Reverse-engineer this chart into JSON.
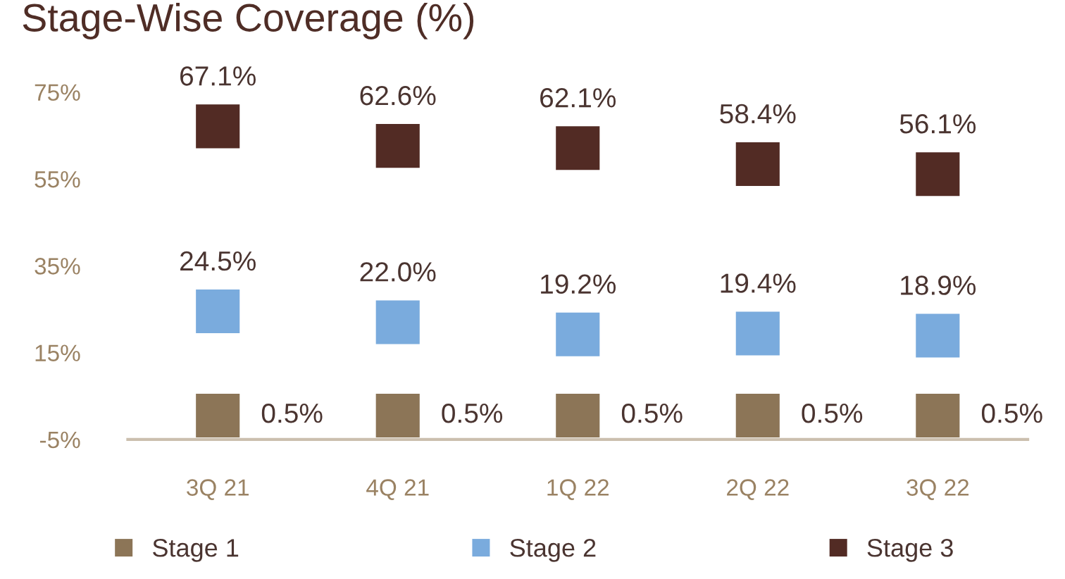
{
  "chart_data": {
    "type": "scatter",
    "title": "Stage-Wise Coverage (%)",
    "categories": [
      "3Q 21",
      "4Q 21",
      "1Q 22",
      "2Q 22",
      "3Q 22"
    ],
    "series": [
      {
        "name": "Stage 1",
        "color": "#8c7557",
        "values": [
          0.5,
          0.5,
          0.5,
          0.5,
          0.5
        ],
        "value_labels": [
          "0.5%",
          "0.5%",
          "0.5%",
          "0.5%",
          "0.5%"
        ]
      },
      {
        "name": "Stage 2",
        "color": "#7aabdd",
        "values": [
          24.5,
          22.0,
          19.2,
          19.4,
          18.9
        ],
        "value_labels": [
          "24.5%",
          "22.0%",
          "19.2%",
          "19.4%",
          "18.9%"
        ]
      },
      {
        "name": "Stage 3",
        "color": "#522b24",
        "values": [
          67.1,
          62.6,
          62.1,
          58.4,
          56.1
        ],
        "value_labels": [
          "67.1%",
          "62.6%",
          "62.1%",
          "58.4%",
          "56.1%"
        ]
      }
    ],
    "ylim": [
      -5,
      75
    ],
    "yticks": [
      {
        "value": -5,
        "label": "-5%"
      },
      {
        "value": 15,
        "label": "15%"
      },
      {
        "value": 35,
        "label": "35%"
      },
      {
        "value": 55,
        "label": "55%"
      },
      {
        "value": 75,
        "label": "75%"
      }
    ],
    "marker": "square",
    "legend": "bottom"
  }
}
